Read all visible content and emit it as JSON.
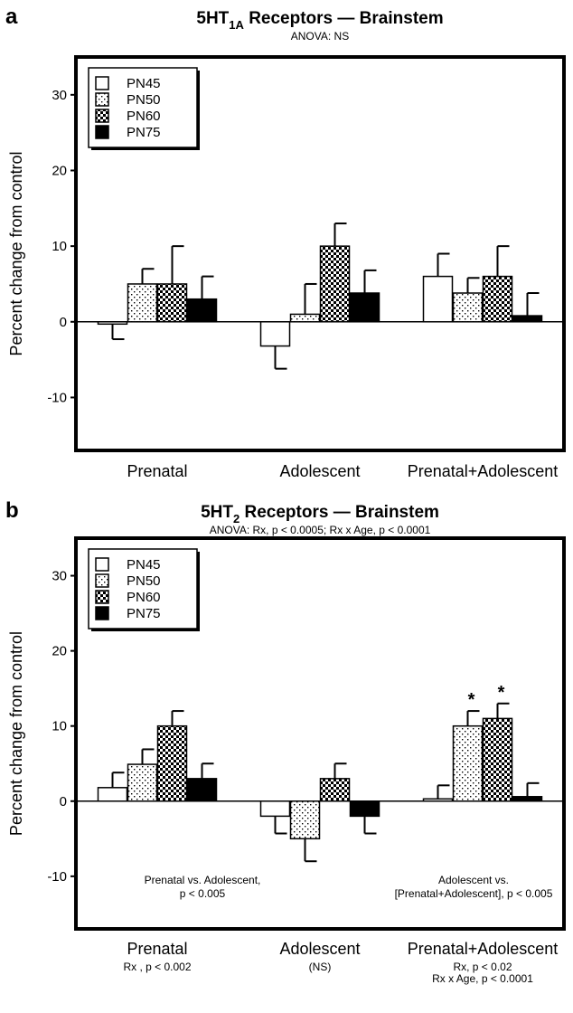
{
  "chart_data": [
    {
      "type": "bar",
      "panel": "a",
      "title_main": "5HT",
      "title_sub": "1A",
      "title_rest": " Receptors — Brainstem",
      "subtitle": "ANOVA: NS",
      "ylabel": "Percent change from control",
      "ylim": [
        -17,
        35
      ],
      "yticks": [
        -10,
        0,
        10,
        20,
        30
      ],
      "categories": [
        "Prenatal",
        "Adolescent",
        "Prenatal+Adolescent"
      ],
      "category_notes": [
        "",
        "",
        ""
      ],
      "series": [
        {
          "name": "PN45",
          "fill": "white",
          "values": [
            -0.3,
            -3.2,
            6
          ],
          "errors": [
            2,
            3,
            3
          ]
        },
        {
          "name": "PN50",
          "fill": "sparse",
          "values": [
            5,
            1,
            3.8
          ],
          "errors": [
            2,
            4,
            2
          ]
        },
        {
          "name": "PN60",
          "fill": "checker",
          "values": [
            5,
            10,
            6
          ],
          "errors": [
            5,
            3,
            4
          ]
        },
        {
          "name": "PN75",
          "fill": "black",
          "values": [
            3,
            3.8,
            0.8
          ],
          "errors": [
            3,
            3,
            3
          ]
        }
      ],
      "stars": [],
      "annotations": [],
      "legend_position": "top-left"
    },
    {
      "type": "bar",
      "panel": "b",
      "title_main": "5HT",
      "title_sub": "2",
      "title_rest": " Receptors — Brainstem",
      "subtitle": "ANOVA:  Rx, p < 0.0005; Rx x Age, p < 0.0001",
      "ylabel": "Percent change from control",
      "ylim": [
        -17,
        35
      ],
      "yticks": [
        -10,
        0,
        10,
        20,
        30
      ],
      "categories": [
        "Prenatal",
        "Adolescent",
        "Prenatal+Adolescent"
      ],
      "category_notes": [
        [
          "Rx , p < 0.002"
        ],
        [
          "(NS)"
        ],
        [
          "Rx, p < 0.02",
          "Rx x Age, p < 0.0001"
        ]
      ],
      "series": [
        {
          "name": "PN45",
          "fill": "white",
          "values": [
            1.8,
            -2,
            0.3
          ],
          "errors": [
            2,
            2.3,
            1.8
          ]
        },
        {
          "name": "PN50",
          "fill": "sparse",
          "values": [
            4.9,
            -5,
            10
          ],
          "errors": [
            2,
            3,
            2
          ]
        },
        {
          "name": "PN60",
          "fill": "checker",
          "values": [
            10,
            3,
            11
          ],
          "errors": [
            2,
            2,
            2
          ]
        },
        {
          "name": "PN75",
          "fill": "black",
          "values": [
            3,
            -2,
            0.6
          ],
          "errors": [
            2,
            2.3,
            1.8
          ]
        }
      ],
      "stars": [
        {
          "category": 2,
          "series": 1,
          "label": "*"
        },
        {
          "category": 2,
          "series": 2,
          "label": "*"
        }
      ],
      "annotations": [
        {
          "lines": [
            "Prenatal vs. Adolescent,",
            "p < 0.005"
          ],
          "anchor": "between Prenatal and Adolescent",
          "y": -11
        },
        {
          "lines": [
            "Adolescent vs.",
            "[Prenatal+Adolescent], p < 0.005"
          ],
          "anchor": "between Adolescent and Prenatal+Adolescent",
          "y": -11
        }
      ],
      "legend_position": "top-left"
    }
  ]
}
